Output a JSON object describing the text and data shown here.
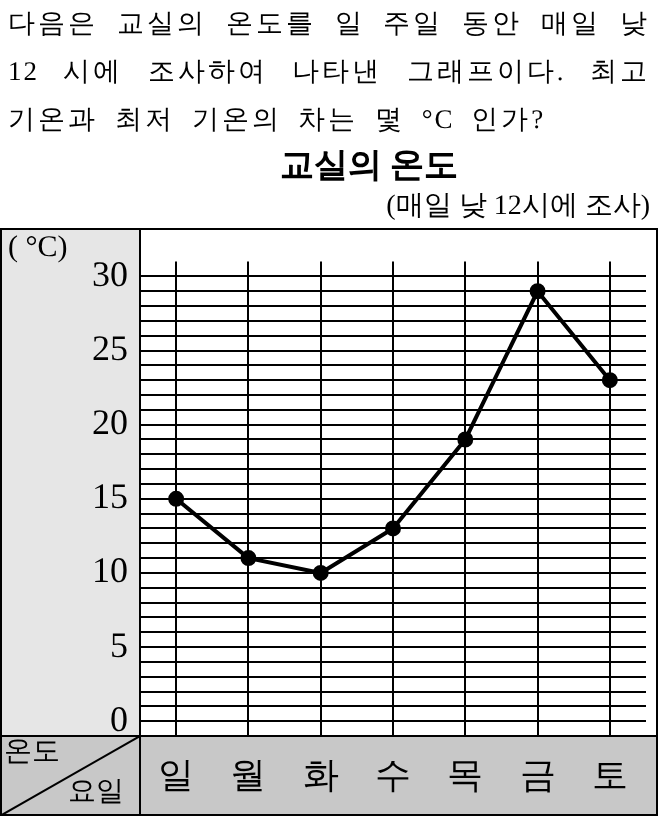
{
  "chart_data": {
    "type": "line",
    "title": "교실의 온도",
    "subtitle": "(매일 낮 12시에 조사)",
    "xlabel": "요일",
    "ylabel": "온도",
    "annotations": [
      "다음은 교실의 온도를 일 주일 동안 매일 낮 12 시에 조사하여 나타낸 그래프이다. 최고 기온과 최저 기온의 차는 몇 °C 인가?",
      "( °C)"
    ],
    "categories": [
      "일",
      "월",
      "화",
      "수",
      "목",
      "금",
      "토"
    ],
    "series": [
      {
        "color": "#000000",
        "values": [
          15,
          11,
          10,
          13,
          19,
          29,
          23
        ]
      }
    ],
    "ylim": [
      -1,
      31
    ],
    "yticks": [
      0,
      {
        "value": 1,
        "label": null
      },
      {
        "value": 2,
        "label": null
      },
      {
        "value": 3,
        "label": null
      },
      {
        "value": 4,
        "label": null
      },
      5,
      {
        "value": 6,
        "label": null
      },
      {
        "value": 7,
        "label": null
      },
      {
        "value": 8,
        "label": null
      },
      {
        "value": 9,
        "label": null
      },
      10,
      {
        "value": 11,
        "label": null
      },
      {
        "value": 12,
        "label": null
      },
      {
        "value": 13,
        "label": null
      },
      {
        "value": 14,
        "label": null
      },
      15,
      {
        "value": 16,
        "label": null
      },
      {
        "value": 17,
        "label": null
      },
      {
        "value": 18,
        "label": null
      },
      {
        "value": 19,
        "label": null
      },
      20,
      {
        "value": 21,
        "label": null
      },
      {
        "value": 22,
        "label": null
      },
      {
        "value": 23,
        "label": null
      },
      {
        "value": 24,
        "label": null
      },
      25,
      {
        "value": 26,
        "label": null
      },
      {
        "value": 27,
        "label": null
      },
      {
        "value": 28,
        "label": null
      },
      {
        "value": 29,
        "label": null
      },
      30
    ],
    "grid": true,
    "legend": false,
    "marker": "circle",
    "line_style": "solid"
  }
}
